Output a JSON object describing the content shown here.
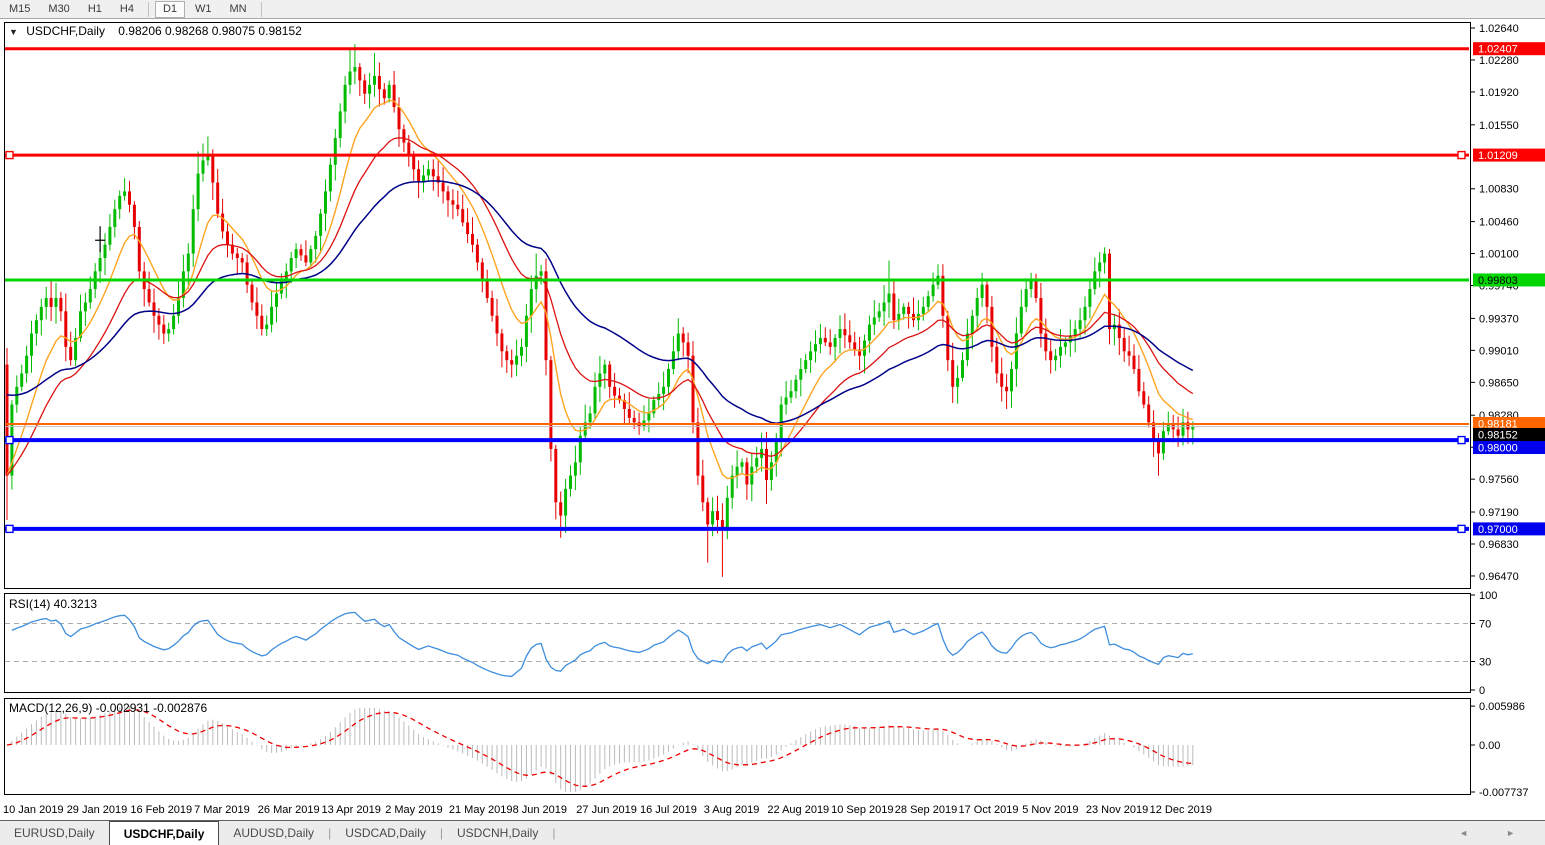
{
  "toolbar": {
    "timeframes": [
      {
        "label": "M15",
        "active": false
      },
      {
        "label": "M30",
        "active": false
      },
      {
        "label": "H1",
        "active": false
      },
      {
        "label": "H4",
        "active": false
      },
      {
        "label": "D1",
        "active": true
      },
      {
        "label": "W1",
        "active": false
      },
      {
        "label": "MN",
        "active": false
      }
    ]
  },
  "chart": {
    "title": {
      "arrow": "▼",
      "symbol": "USDCHF,Daily",
      "ohlc": "0.98206 0.98268 0.98075 0.98152"
    }
  },
  "indicators": {
    "rsi_label": "RSI(14) 40.3213",
    "macd_label": "MACD(12,26,9) -0.002931 -0.002876"
  },
  "tabs": {
    "separator": "|",
    "scroll_left": "◄",
    "scroll_right": "►",
    "items": [
      {
        "label": "EURUSD,Daily",
        "active": false
      },
      {
        "label": "USDCHF,Daily",
        "active": true
      },
      {
        "label": "AUDUSD,Daily",
        "active": false
      },
      {
        "label": "USDCAD,Daily",
        "active": false
      },
      {
        "label": "USDCNH,Daily",
        "active": false
      }
    ]
  },
  "chart_data": {
    "type": "candlestick",
    "symbol": "USDCHF",
    "timeframe": "Daily",
    "ohlc_display": {
      "open": "0.98206",
      "high": "0.98268",
      "low": "0.98075",
      "close": "0.98152"
    },
    "x_labels": [
      "10 Jan 2019",
      "29 Jan 2019",
      "16 Feb 2019",
      "7 Mar 2019",
      "26 Mar 2019",
      "13 Apr 2019",
      "2 May 2019",
      "21 May 2019",
      "8 Jun 2019",
      "27 Jun 2019",
      "16 Jul 2019",
      "3 Aug 2019",
      "22 Aug 2019",
      "10 Sep 2019",
      "28 Sep 2019",
      "17 Oct 2019",
      "5 Nov 2019",
      "23 Nov 2019",
      "12 Dec 2019"
    ],
    "y_axis_ticks": [
      "1.02640",
      "1.02280",
      "1.01920",
      "1.01550",
      "1.00830",
      "1.00460",
      "1.00100",
      "0.99740",
      "0.99370",
      "0.99010",
      "0.98650",
      "0.98280",
      "0.97920",
      "0.97560",
      "0.97190",
      "0.96830",
      "0.96470"
    ],
    "price_top": 1.0264,
    "price_bottom": 0.9647,
    "first_open": 0.9885,
    "closes": [
      0.976,
      0.984,
      0.986,
      0.9875,
      0.9895,
      0.992,
      0.9935,
      0.995,
      0.996,
      0.995,
      0.996,
      0.9945,
      0.9905,
      0.989,
      0.9915,
      0.9945,
      0.9955,
      0.997,
      0.999,
      1.0005,
      1.002,
      1.004,
      1.006,
      1.0075,
      1.008,
      1.0065,
      1.004,
      0.999,
      0.997,
      0.9955,
      0.994,
      0.993,
      0.992,
      0.9925,
      0.994,
      0.996,
      0.999,
      1.001,
      1.006,
      1.01,
      1.0115,
      1.012,
      1.009,
      1.0055,
      1.0035,
      1.002,
      1.001,
      1.0005,
      1.0,
      0.9975,
      0.9955,
      0.994,
      0.9925,
      0.993,
      0.995,
      0.9965,
      0.998,
      0.999,
      1.0005,
      1.0015,
      1.0008,
      1.0,
      1.0015,
      1.003,
      1.0055,
      1.008,
      1.011,
      1.014,
      1.017,
      1.02,
      1.0215,
      1.022,
      1.0205,
      1.019,
      1.02,
      1.021,
      1.0195,
      1.0185,
      1.02,
      1.0175,
      1.015,
      1.0135,
      1.012,
      1.0105,
      1.009,
      1.0098,
      1.0105,
      1.0097,
      1.009,
      1.008,
      1.007,
      1.0065,
      1.006,
      1.0045,
      1.0032,
      1.002,
      1.0,
      0.998,
      0.996,
      0.994,
      0.992,
      0.99,
      0.989,
      0.9885,
      0.9895,
      0.9905,
      0.994,
      0.997,
      0.9985,
      0.999,
      0.989,
      0.979,
      0.973,
      0.9715,
      0.9745,
      0.976,
      0.9775,
      0.9805,
      0.982,
      0.983,
      0.986,
      0.9875,
      0.9885,
      0.986,
      0.985,
      0.9845,
      0.9835,
      0.9825,
      0.982,
      0.9815,
      0.9822,
      0.983,
      0.9845,
      0.9852,
      0.986,
      0.988,
      0.99,
      0.992,
      0.991,
      0.9895,
      0.982,
      0.976,
      0.973,
      0.9705,
      0.972,
      0.971,
      0.97,
      0.9735,
      0.976,
      0.977,
      0.9775,
      0.975,
      0.977,
      0.978,
      0.979,
      0.9755,
      0.9775,
      0.98,
      0.984,
      0.9848,
      0.9855,
      0.9868,
      0.988,
      0.989,
      0.99,
      0.9908,
      0.9915,
      0.991,
      0.9905,
      0.9915,
      0.9925,
      0.9918,
      0.991,
      0.9902,
      0.9895,
      0.9912,
      0.993,
      0.9938,
      0.9945,
      0.9955,
      0.9965,
      0.9935,
      0.9942,
      0.995,
      0.9942,
      0.9935,
      0.9942,
      0.995,
      0.9962,
      0.9975,
      0.9985,
      0.994,
      0.989,
      0.986,
      0.987,
      0.989,
      0.992,
      0.994,
      0.996,
      0.9975,
      0.995,
      0.9905,
      0.9875,
      0.986,
      0.9855,
      0.988,
      0.992,
      0.995,
      0.997,
      0.998,
      0.996,
      0.992,
      0.99,
      0.989,
      0.9895,
      0.9905,
      0.991,
      0.9918,
      0.9925,
      0.9935,
      0.995,
      0.997,
      0.999,
      1.0,
      1.001,
      0.9925,
      0.993,
      0.9915,
      0.99,
      0.9895,
      0.988,
      0.9855,
      0.984,
      0.982,
      0.98,
      0.9785,
      0.981,
      0.9818,
      0.9812,
      0.9805,
      0.982,
      0.9812,
      0.98152
    ],
    "wick_overrides": {
      "0": {
        "low": 0.971
      },
      "24": {
        "high": 1.0095
      },
      "39": {
        "high": 1.0125
      },
      "41": {
        "high": 1.0142
      },
      "70": {
        "high": 1.024
      },
      "71": {
        "high": 1.0246
      },
      "75": {
        "high": 1.0236
      },
      "108": {
        "high": 1.001
      },
      "113": {
        "low": 0.969
      },
      "143": {
        "low": 0.9662
      },
      "146": {
        "low": 0.9646
      },
      "155": {
        "low": 0.9728
      },
      "180": {
        "high": 1.0002
      },
      "190": {
        "high": 0.9998
      },
      "224": {
        "high": 1.0017
      },
      "235": {
        "low": 0.976
      }
    },
    "candle_up_color": "#00BB00",
    "candle_down_color": "#E60000",
    "moving_averages": [
      {
        "name": "MA fast",
        "type": "ema",
        "period": 10,
        "color": "#FFA420",
        "width": 1.4
      },
      {
        "name": "MA medium",
        "type": "ema",
        "period": 22,
        "color": "#DD1111",
        "width": 1.3
      },
      {
        "name": "MA slow",
        "type": "ema",
        "period": 45,
        "color": "#000088",
        "width": 1.5
      }
    ],
    "h_lines": [
      {
        "value": 1.02407,
        "label": "1.02407",
        "color": "#FF0000",
        "width": 3,
        "label_bg": "#FF0000",
        "label_fg": "#FFFFFF",
        "handles": false
      },
      {
        "value": 1.01209,
        "label": "1.01209",
        "color": "#FF0000",
        "width": 3,
        "label_bg": "#FF0000",
        "label_fg": "#FFFFFF",
        "handles": true
      },
      {
        "value": 0.99803,
        "label": "0.99803",
        "color": "#00D500",
        "width": 3,
        "label_bg": "#00D500",
        "label_fg": "#000000",
        "handles": false
      },
      {
        "value": 0.98181,
        "label": "0.98181",
        "color": "#FF6600",
        "width": 2,
        "label_bg": "#FF6600",
        "label_fg": "#FFFFFF",
        "handles": false
      },
      {
        "value": 0.98,
        "label": "0.98000",
        "color": "#0000FF",
        "width": 4,
        "label_bg": "#0000EE",
        "label_fg": "#FFFFFF",
        "handles": true
      },
      {
        "value": 0.97,
        "label": "0.97000",
        "color": "#0000FF",
        "width": 4,
        "label_bg": "#0000EE",
        "label_fg": "#FFFFFF",
        "handles": true
      }
    ],
    "current_price": {
      "value": 0.98152,
      "label": "0.98152",
      "line_color": "#C0C0C0",
      "label_bg": "#000000",
      "label_fg": "#FFFFFF"
    },
    "cross_marker": {
      "index": 19,
      "price": 1.0025
    },
    "rsi": {
      "period": 14,
      "current": 40.3213,
      "color": "#3E8EDE",
      "levels": [
        70,
        30
      ],
      "scale_labels": [
        "100",
        "70",
        "30",
        "0"
      ],
      "scale_values": [
        100,
        70,
        30,
        0
      ]
    },
    "macd": {
      "fast": 12,
      "slow": 26,
      "signal": 9,
      "hist_color": "#BBBBBB",
      "signal_color": "#EE0000",
      "scale_labels": [
        "0.005986",
        "0.00",
        "-0.007737"
      ],
      "scale_values": [
        0.005986,
        0,
        -0.007737
      ]
    }
  }
}
